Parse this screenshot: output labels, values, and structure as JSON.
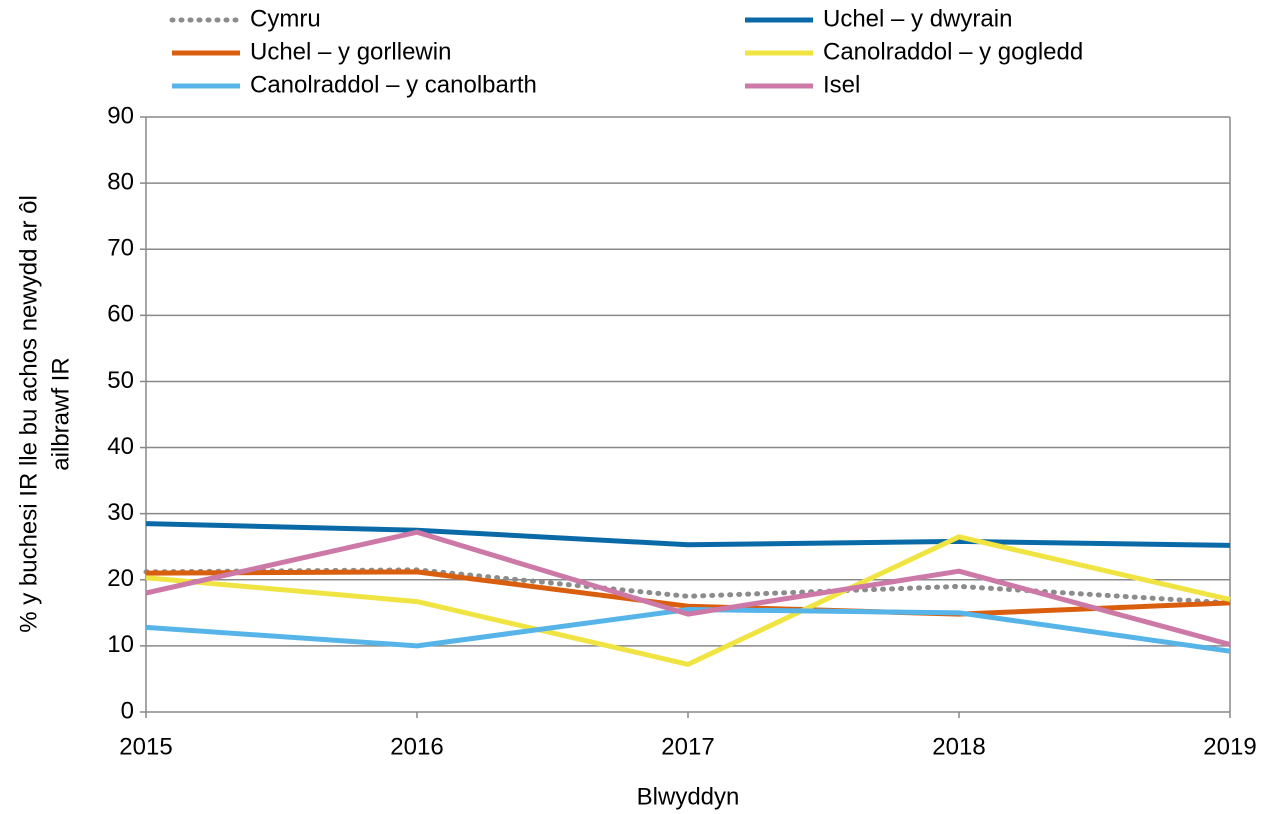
{
  "chart_data": {
    "type": "line",
    "xlabel": "Blwyddyn",
    "ylabel": [
      "% y buchesi IR lle bu achos newydd ar ôl",
      "ailbrawf IR"
    ],
    "x": [
      2015,
      2016,
      2017,
      2018,
      2019
    ],
    "xlim": [
      2015,
      2019
    ],
    "xticks": [
      2015,
      2016,
      2017,
      2018,
      2019
    ],
    "ylim": [
      0,
      90
    ],
    "yticks": [
      0,
      10,
      20,
      30,
      40,
      50,
      60,
      70,
      80,
      90
    ],
    "grid": true,
    "series": [
      {
        "name": "Cymru",
        "color": "#8c8c8c",
        "dotted": true,
        "values": [
          21.2,
          21.5,
          17.5,
          19,
          16.5
        ]
      },
      {
        "name": "Uchel – y dwyrain",
        "color": "#0a6aa8",
        "values": [
          28.5,
          27.5,
          25.3,
          25.8,
          25.2
        ]
      },
      {
        "name": "Uchel – y gorllewin",
        "color": "#d95f0e",
        "values": [
          21,
          21.2,
          16,
          14.8,
          16.5
        ]
      },
      {
        "name": "Canolraddol – y gogledd",
        "color": "#f0e442",
        "values": [
          20.3,
          16.7,
          7.2,
          26.5,
          17
        ]
      },
      {
        "name": "Canolraddol – y canolbarth",
        "color": "#56b4e9",
        "values": [
          12.8,
          10,
          15.5,
          15,
          9.2
        ]
      },
      {
        "name": "Isel",
        "color": "#cc79a7",
        "values": [
          18,
          27.2,
          14.8,
          21.3,
          10.2
        ]
      }
    ]
  }
}
